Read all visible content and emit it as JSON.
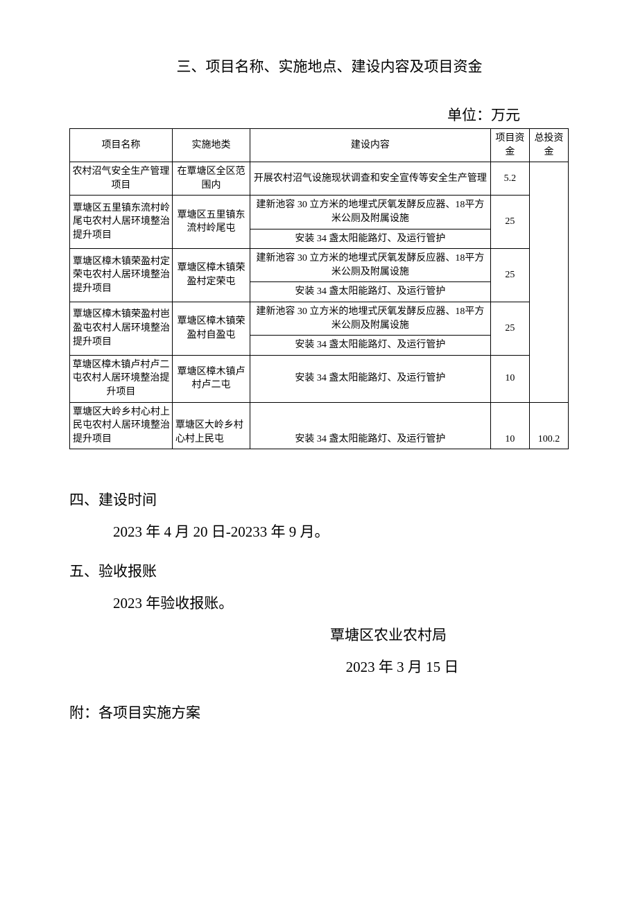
{
  "title_section3": "三、项目名称、实施地点、建设内容及项目资金",
  "unit_label": "单位：万元",
  "table": {
    "headers": {
      "name": "项目名称",
      "location": "实施地类",
      "content": "建设内容",
      "fund": "项目资金",
      "total": "总投资金"
    },
    "rows": [
      {
        "name": "农村沼气安全生产管理项目",
        "location": "在覃塘区全区范围内",
        "contents": [
          "开展农村沼气设施现状调查和安全宣传等安全生产管理"
        ],
        "fund": "5.2"
      },
      {
        "name": "覃塘区五里镇东流村岭尾屯农村人居环境整治提升项目",
        "location": "覃塘区五里镇东流村岭尾屯",
        "contents": [
          "建新池容 30 立方米的地埋式厌氧发酵反应器、18平方米公厕及附属设施",
          "安装 34 盏太阳能路灯、及运行管护"
        ],
        "fund": "25"
      },
      {
        "name": "覃塘区樟木镇荣盈村定荣屯农村人居环境整治提升项目",
        "location": "覃塘区樟木镇荣盈村定荣屯",
        "contents": [
          "建新池容 30 立方米的地埋式厌氧发酵反应器、18平方米公厕及附属设施",
          "安装 34 盏太阳能路灯、及运行管护"
        ],
        "fund": "25"
      },
      {
        "name": "覃塘区樟木镇荣盈村岜盈屯农村人居环境整治提升项目",
        "location": "覃塘区樟木镇荣盈村自盈屯",
        "contents": [
          "建新池容 30 立方米的地埋式厌氧发酵反应器、18平方米公厕及附属设施",
          "安装 34 盏太阳能路灯、及运行管护"
        ],
        "fund": "25"
      },
      {
        "name": "草塘区樟木镇卢村卢二屯农村人居环境整治提升项目",
        "location": "覃塘区樟木镇卢村卢二屯",
        "contents": [
          "安装 34 盏太阳能路灯、及运行管护"
        ],
        "fund": "10"
      },
      {
        "name": "覃塘区大岭乡村心村上民屯农村人居环境整治提升项目",
        "location": "覃塘区大岭乡村心村上民屯",
        "contents": [
          "安装 34 盏太阳能路灯、及运行管护"
        ],
        "fund": "10",
        "total": "100.2"
      }
    ]
  },
  "section4": {
    "title": "四、建设时间",
    "body": "2023 年 4 月 20 日-20233 年 9 月。"
  },
  "section5": {
    "title": "五、验收报账",
    "body": "2023 年验收报账。"
  },
  "signature": "覃塘区农业农村局",
  "date": "2023 年 3 月 15 日",
  "attachment": "附：各项目实施方案"
}
